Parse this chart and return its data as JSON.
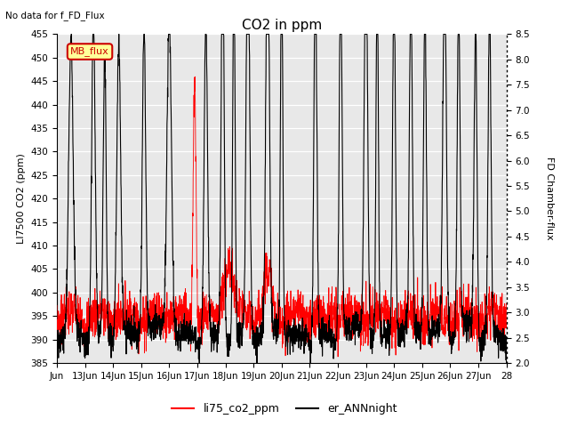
{
  "title": "CO2 in ppm",
  "top_left_text": "No data for f_FD_Flux",
  "ylabel_left": "LI7500 CO2 (ppm)",
  "ylabel_right": "FD Chamber-flux",
  "ylim_left": [
    385,
    455
  ],
  "ylim_right": [
    2.0,
    8.5
  ],
  "yticks_left": [
    385,
    390,
    395,
    400,
    405,
    410,
    415,
    420,
    425,
    430,
    435,
    440,
    445,
    450,
    455
  ],
  "yticks_right": [
    2.0,
    2.5,
    3.0,
    3.5,
    4.0,
    4.5,
    5.0,
    5.5,
    6.0,
    6.5,
    7.0,
    7.5,
    8.0,
    8.5
  ],
  "xticklabels": [
    "Jun",
    "13Jun",
    "14Jun",
    "15Jun",
    "16Jun",
    "17Jun",
    "18Jun",
    "19Jun",
    "20Jun",
    "21Jun",
    "22Jun",
    "23Jun",
    "24Jun",
    "25Jun",
    "26Jun",
    "27Jun",
    "28"
  ],
  "legend_labels": [
    "li75_co2_ppm",
    "er_ANNnight"
  ],
  "legend_colors": [
    "#ff0000",
    "#000000"
  ],
  "mb_flux_box_color": "#ffff99",
  "mb_flux_text_color": "#cc0000",
  "mb_flux_border_color": "#cc0000",
  "grid_color": "#d0d0d0",
  "background_color": "#ffffff",
  "line_color_red": "#ff0000",
  "line_color_black": "#000000",
  "n_days": 16,
  "pts_per_day": 144
}
